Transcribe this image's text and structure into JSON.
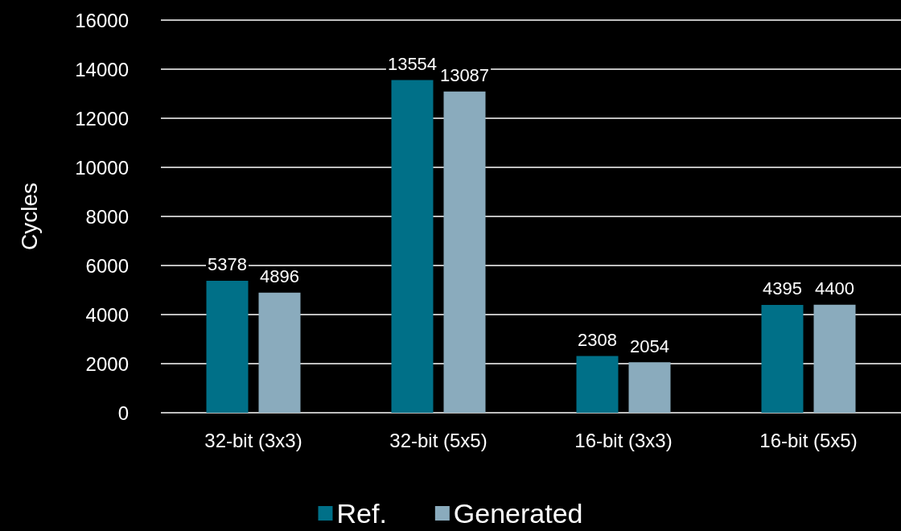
{
  "chart_data": {
    "type": "bar",
    "ylabel": "Cycles",
    "categories": [
      "32-bit (3x3)",
      "32-bit (5x5)",
      "16-bit (3x3)",
      "16-bit (5x5)"
    ],
    "series": [
      {
        "name": "Ref.",
        "color": "#007088",
        "values": [
          5378,
          13554,
          2308,
          4395
        ]
      },
      {
        "name": "Generated",
        "color": "#8aabbd",
        "values": [
          4896,
          13087,
          2054,
          4400
        ]
      }
    ],
    "ylim": [
      0,
      16000
    ],
    "yticks": [
      0,
      2000,
      4000,
      6000,
      8000,
      10000,
      12000,
      14000,
      16000
    ],
    "grid": "y",
    "legend": "bottom",
    "data_labels": true
  }
}
